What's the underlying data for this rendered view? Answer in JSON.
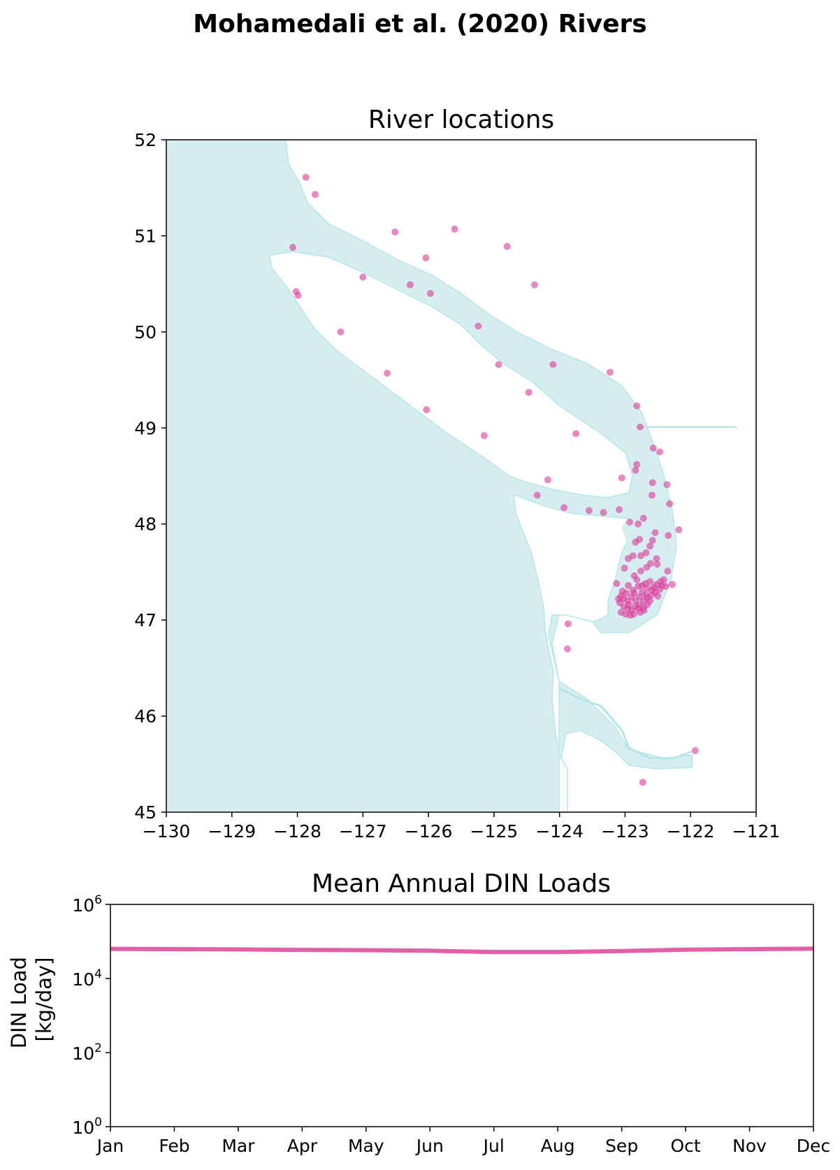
{
  "figure": {
    "suptitle": "Mohamedali et al. (2020) Rivers"
  },
  "colors": {
    "water": "#d6eef0",
    "coastline": "#b4e6ea",
    "river_points": "#e0379a",
    "load_line": "#e35fa8"
  },
  "chart_data": [
    {
      "type": "scatter",
      "title": "River locations",
      "xlabel": "",
      "ylabel": "",
      "xlim": [
        -130,
        -121
      ],
      "ylim": [
        45,
        52
      ],
      "xticks": [
        "−130",
        "−129",
        "−128",
        "−127",
        "−126",
        "−125",
        "−124",
        "−123",
        "−122",
        "−121"
      ],
      "yticks": [
        "45",
        "46",
        "47",
        "48",
        "49",
        "50",
        "51",
        "52"
      ],
      "background": "coastline map of the Salish Sea, Vancouver Island and the Washington coast",
      "grid": false,
      "points": [
        [
          -127.87,
          51.61
        ],
        [
          -127.73,
          51.43
        ],
        [
          -128.07,
          50.88
        ],
        [
          -126.51,
          51.04
        ],
        [
          -125.6,
          51.07
        ],
        [
          -126.04,
          50.77
        ],
        [
          -124.8,
          50.89
        ],
        [
          -127.0,
          50.57
        ],
        [
          -126.28,
          50.49
        ],
        [
          -125.97,
          50.4
        ],
        [
          -124.38,
          50.49
        ],
        [
          -128.02,
          50.42
        ],
        [
          -127.99,
          50.38
        ],
        [
          -127.34,
          50.0
        ],
        [
          -125.24,
          50.06
        ],
        [
          -124.93,
          49.66
        ],
        [
          -124.1,
          49.66
        ],
        [
          -126.63,
          49.57
        ],
        [
          -123.23,
          49.58
        ],
        [
          -124.47,
          49.37
        ],
        [
          -126.03,
          49.19
        ],
        [
          -122.82,
          49.23
        ],
        [
          -125.15,
          48.92
        ],
        [
          -123.75,
          48.94
        ],
        [
          -122.77,
          49.01
        ],
        [
          -122.57,
          48.79
        ],
        [
          -122.47,
          48.75
        ],
        [
          -122.82,
          48.62
        ],
        [
          -122.84,
          48.56
        ],
        [
          -122.58,
          48.43
        ],
        [
          -123.05,
          48.48
        ],
        [
          -122.36,
          48.41
        ],
        [
          -124.18,
          48.46
        ],
        [
          -124.34,
          48.3
        ],
        [
          -122.59,
          48.3
        ],
        [
          -122.32,
          48.21
        ],
        [
          -123.93,
          48.17
        ],
        [
          -123.55,
          48.14
        ],
        [
          -123.33,
          48.12
        ],
        [
          -123.09,
          48.15
        ],
        [
          -122.93,
          48.02
        ],
        [
          -122.8,
          48.0
        ],
        [
          -122.72,
          48.06
        ],
        [
          -122.18,
          47.94
        ],
        [
          -122.54,
          47.91
        ],
        [
          -122.34,
          47.88
        ],
        [
          -122.58,
          47.83
        ],
        [
          -122.78,
          47.84
        ],
        [
          -122.84,
          47.81
        ],
        [
          -122.62,
          47.77
        ],
        [
          -122.68,
          47.7
        ],
        [
          -122.88,
          47.67
        ],
        [
          -122.52,
          47.64
        ],
        [
          -122.76,
          47.67
        ],
        [
          -122.95,
          47.64
        ],
        [
          -122.61,
          47.59
        ],
        [
          -122.51,
          47.58
        ],
        [
          -122.67,
          47.55
        ],
        [
          -123.01,
          47.54
        ],
        [
          -122.35,
          47.51
        ],
        [
          -122.76,
          47.51
        ],
        [
          -122.86,
          47.46
        ],
        [
          -123.13,
          47.38
        ],
        [
          -122.28,
          47.37
        ],
        [
          -122.95,
          47.36
        ],
        [
          -122.88,
          47.31
        ],
        [
          -122.8,
          47.35
        ],
        [
          -122.74,
          47.29
        ],
        [
          -122.66,
          47.33
        ],
        [
          -122.59,
          47.31
        ],
        [
          -122.52,
          47.37
        ],
        [
          -122.46,
          47.4
        ],
        [
          -122.38,
          47.35
        ],
        [
          -122.41,
          47.42
        ],
        [
          -122.69,
          47.38
        ],
        [
          -122.82,
          47.42
        ],
        [
          -122.98,
          47.28
        ],
        [
          -123.02,
          47.22
        ],
        [
          -123.06,
          47.25
        ],
        [
          -122.96,
          47.2
        ],
        [
          -122.9,
          47.24
        ],
        [
          -122.84,
          47.2
        ],
        [
          -122.78,
          47.24
        ],
        [
          -122.72,
          47.2
        ],
        [
          -122.66,
          47.23
        ],
        [
          -122.6,
          47.26
        ],
        [
          -122.54,
          47.29
        ],
        [
          -122.47,
          47.32
        ],
        [
          -122.5,
          47.25
        ],
        [
          -123.08,
          47.18
        ],
        [
          -123.02,
          47.14
        ],
        [
          -122.96,
          47.12
        ],
        [
          -122.9,
          47.1
        ],
        [
          -122.84,
          47.14
        ],
        [
          -122.78,
          47.16
        ],
        [
          -122.72,
          47.13
        ],
        [
          -122.66,
          47.16
        ],
        [
          -122.62,
          47.2
        ],
        [
          -123.06,
          47.08
        ],
        [
          -122.99,
          47.06
        ],
        [
          -122.92,
          47.05
        ],
        [
          -122.87,
          47.06
        ],
        [
          -122.77,
          47.08
        ],
        [
          -122.71,
          47.1
        ],
        [
          -123.1,
          47.22
        ],
        [
          -123.04,
          47.3
        ],
        [
          -122.86,
          47.28
        ],
        [
          -122.94,
          47.16
        ],
        [
          -122.8,
          47.12
        ],
        [
          -122.68,
          47.26
        ],
        [
          -122.56,
          47.34
        ],
        [
          -122.44,
          47.36
        ],
        [
          -122.62,
          47.4
        ],
        [
          -122.74,
          47.36
        ],
        [
          -123.87,
          46.96
        ],
        [
          -123.88,
          46.7
        ],
        [
          -121.93,
          45.64
        ],
        [
          -122.73,
          45.31
        ]
      ]
    },
    {
      "type": "line",
      "title": "Mean Annual DIN Loads",
      "xlabel": "",
      "ylabel": "DIN Load [kg/day]",
      "yscale": "log",
      "ylim": [
        1,
        1000000
      ],
      "yticks": [
        {
          "base": "10",
          "exp": "0"
        },
        {
          "base": "10",
          "exp": "2"
        },
        {
          "base": "10",
          "exp": "4"
        },
        {
          "base": "10",
          "exp": "6"
        }
      ],
      "categories": [
        "Jan",
        "Feb",
        "Mar",
        "Apr",
        "May",
        "Jun",
        "Jul",
        "Aug",
        "Sep",
        "Oct",
        "Nov",
        "Dec"
      ],
      "series": [
        {
          "values": [
            63000,
            62000,
            61000,
            59000,
            58000,
            56000,
            52000,
            52000,
            55000,
            60000,
            62000,
            64000
          ]
        }
      ],
      "grid": false
    }
  ]
}
